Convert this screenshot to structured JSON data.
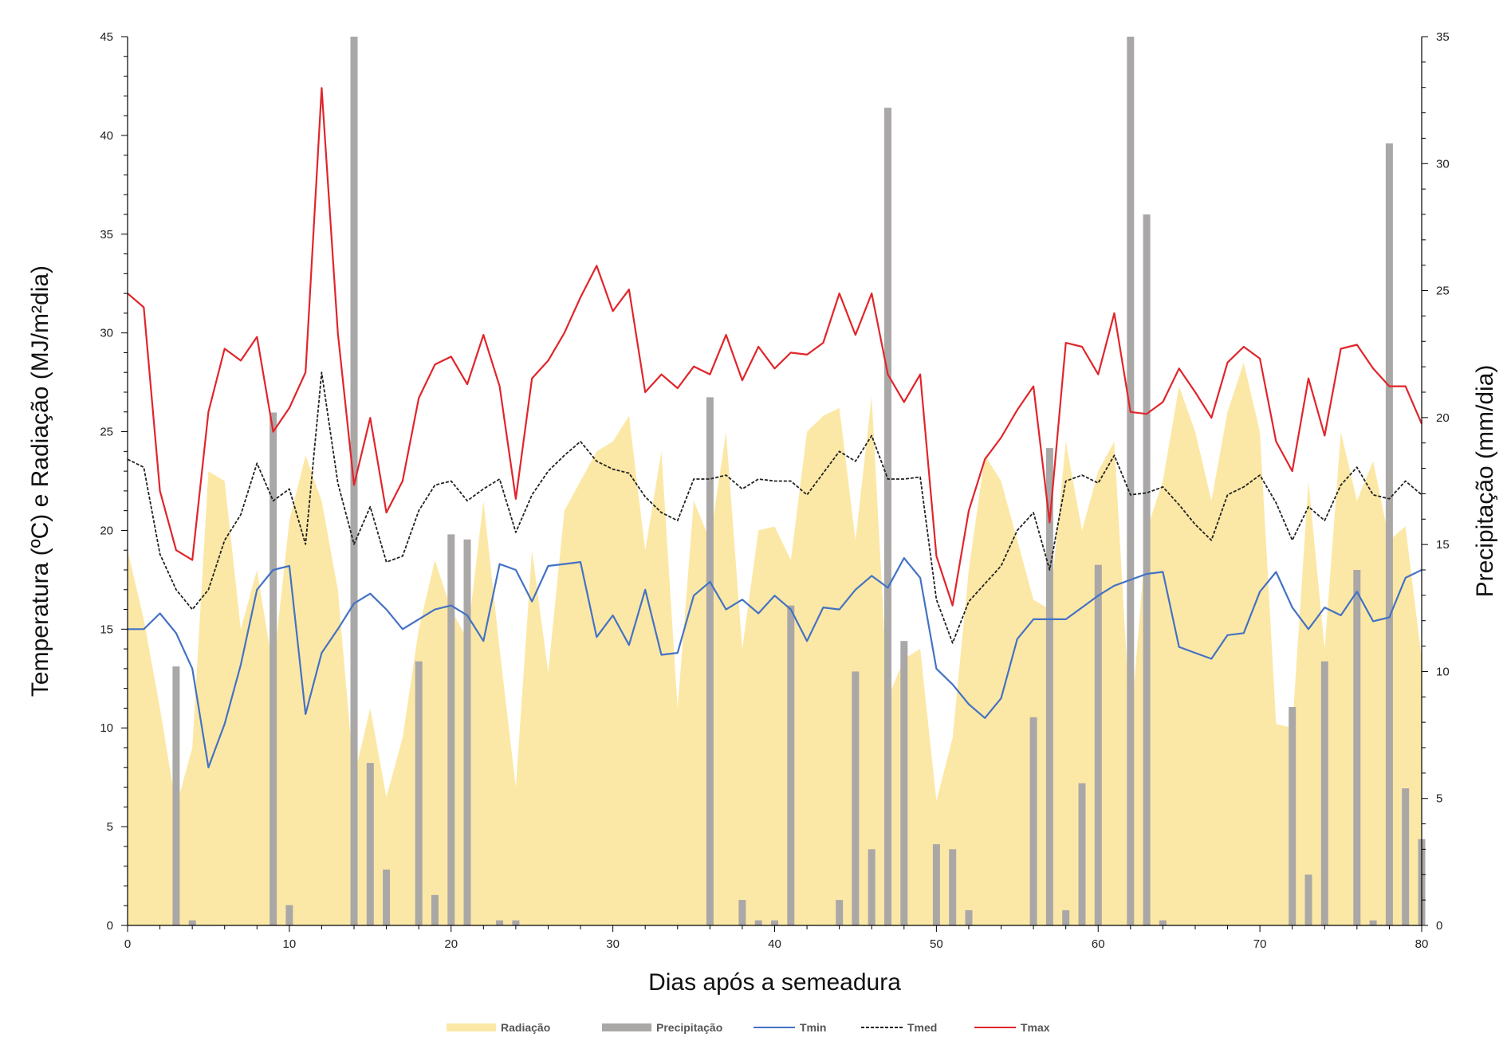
{
  "chart_data": {
    "type": "line",
    "x_axis": {
      "label": "Dias após a semeadura",
      "range": [
        0,
        80
      ],
      "ticks": [
        0,
        10,
        20,
        30,
        40,
        50,
        60,
        70,
        80
      ]
    },
    "y_left": {
      "label": "Temperatura (ºC) e Radiação (MJ/m²dia)",
      "range": [
        0,
        45
      ],
      "ticks": [
        0,
        5,
        10,
        15,
        20,
        25,
        30,
        35,
        40,
        45
      ]
    },
    "y_right": {
      "label": "Precipitação (mm/dia)",
      "range": [
        0,
        35
      ],
      "ticks": [
        0,
        5,
        10,
        15,
        20,
        25,
        30,
        35
      ]
    },
    "grid": false,
    "legend_position": "bottom",
    "days": [
      0,
      1,
      2,
      3,
      4,
      5,
      6,
      7,
      8,
      9,
      10,
      11,
      12,
      13,
      14,
      15,
      16,
      17,
      18,
      19,
      20,
      21,
      22,
      23,
      24,
      25,
      26,
      27,
      28,
      29,
      30,
      31,
      32,
      33,
      34,
      35,
      36,
      37,
      38,
      39,
      40,
      41,
      42,
      43,
      44,
      45,
      46,
      47,
      48,
      49,
      50,
      51,
      52,
      53,
      54,
      55,
      56,
      57,
      58,
      59,
      60,
      61,
      62,
      63,
      64,
      65,
      66,
      67,
      68,
      69,
      70,
      71,
      72,
      73,
      74,
      75,
      76,
      77,
      78,
      79,
      80
    ],
    "series": [
      {
        "name": "Radiação",
        "type": "area",
        "axis": "left",
        "color": "#fce8a6",
        "values": [
          19,
          15.5,
          11,
          6,
          9,
          23,
          22.5,
          15,
          18,
          13,
          20.5,
          23.8,
          21.5,
          17,
          7.5,
          11,
          6.5,
          9.5,
          15,
          18.5,
          16,
          14.5,
          21.5,
          14,
          7,
          19,
          12.8,
          21,
          22.5,
          24,
          24.5,
          25.8,
          19,
          24,
          11,
          21.5,
          19.5,
          25,
          14,
          20,
          20.2,
          18.5,
          25,
          25.8,
          26.2,
          19.5,
          26.8,
          11.5,
          13.5,
          14,
          6.3,
          9.5,
          18,
          23.8,
          22.5,
          19.5,
          16.5,
          16,
          24.5,
          20,
          23,
          24.5,
          10,
          20,
          22.5,
          27.3,
          25,
          21.5,
          26,
          28.5,
          25,
          10.2,
          10,
          22.5,
          14,
          25,
          21.5,
          23.5,
          19.5,
          20.2,
          13.5
        ]
      },
      {
        "name": "Precipitação",
        "type": "bar",
        "axis": "right",
        "color": "#aaa7a7",
        "values": [
          0,
          0,
          0,
          10.2,
          0.2,
          0,
          0,
          0,
          0,
          20.2,
          0.8,
          0,
          0,
          0,
          35,
          6.4,
          2.2,
          0,
          10.4,
          1.2,
          15.4,
          15.2,
          0,
          0.2,
          0.2,
          0,
          0,
          0,
          0,
          0,
          0,
          0,
          0,
          0,
          0,
          0,
          20.8,
          0,
          1,
          0.2,
          0.2,
          12.6,
          0,
          0,
          1,
          10,
          3,
          32.2,
          11.2,
          0,
          3.2,
          3,
          0.6,
          0,
          0,
          0,
          8.2,
          18.8,
          0.6,
          5.6,
          14.2,
          0,
          35,
          28,
          0.2,
          0,
          0,
          0,
          0,
          0,
          0,
          0,
          8.6,
          2,
          10.4,
          0,
          14,
          0.2,
          30.8,
          5.4,
          3.4
        ]
      },
      {
        "name": "Tmin",
        "type": "line",
        "axis": "left",
        "color": "#4472c4",
        "values": [
          15,
          15,
          15.8,
          14.8,
          13,
          8,
          10.2,
          13.2,
          17,
          18,
          18.2,
          10.7,
          13.8,
          15,
          16.3,
          16.8,
          16,
          15,
          15.5,
          16,
          16.2,
          15.7,
          14.4,
          18.3,
          18,
          16.4,
          18.2,
          18.3,
          18.4,
          14.6,
          15.7,
          14.2,
          17,
          13.7,
          13.8,
          16.7,
          17.4,
          16,
          16.5,
          15.8,
          16.7,
          16,
          14.4,
          16.1,
          16,
          17,
          17.7,
          17.1,
          18.6,
          17.6,
          13,
          12.2,
          11.2,
          10.5,
          11.5,
          14.5,
          15.5,
          15.5,
          15.5,
          16.1,
          16.7,
          17.2,
          17.5,
          17.8,
          17.9,
          14.1,
          13.8,
          13.5,
          14.7,
          14.8,
          16.9,
          17.9,
          16.1,
          15,
          16.1,
          15.7,
          16.9,
          15.4,
          15.6,
          17.6,
          18
        ]
      },
      {
        "name": "Tmed",
        "type": "line",
        "axis": "left",
        "color": "#222222",
        "dashed": true,
        "values": [
          23.6,
          23.2,
          18.8,
          17,
          16,
          17,
          19.5,
          20.8,
          23.4,
          21.5,
          22.1,
          19.3,
          28,
          22.4,
          19.3,
          21.2,
          18.4,
          18.7,
          21,
          22.3,
          22.5,
          21.5,
          22.1,
          22.6,
          19.9,
          21.8,
          23,
          23.8,
          24.5,
          23.5,
          23.1,
          22.9,
          21.7,
          20.9,
          20.5,
          22.6,
          22.6,
          22.8,
          22.1,
          22.6,
          22.5,
          22.5,
          21.8,
          22.9,
          24,
          23.5,
          24.8,
          22.6,
          22.6,
          22.7,
          16.5,
          14.3,
          16.4,
          17.3,
          18.2,
          20,
          20.9,
          18,
          22.5,
          22.8,
          22.4,
          23.8,
          21.8,
          21.9,
          22.2,
          21.3,
          20.3,
          19.5,
          21.8,
          22.2,
          22.8,
          21.4,
          19.5,
          21.2,
          20.5,
          22.3,
          23.2,
          21.8,
          21.6,
          22.5,
          21.8
        ]
      },
      {
        "name": "Tmax",
        "type": "line",
        "axis": "left",
        "color": "#e0252b",
        "values": [
          32,
          31.3,
          22,
          19,
          18.5,
          26,
          29.2,
          28.6,
          29.8,
          25,
          26.2,
          28,
          42.4,
          30,
          22.3,
          25.7,
          20.9,
          22.5,
          26.7,
          28.4,
          28.8,
          27.4,
          29.9,
          27.3,
          21.6,
          27.7,
          28.6,
          30,
          31.8,
          33.4,
          31.1,
          32.2,
          27,
          27.9,
          27.2,
          28.3,
          27.9,
          29.9,
          27.6,
          29.3,
          28.2,
          29,
          28.9,
          29.5,
          32,
          29.9,
          32,
          27.9,
          26.5,
          27.9,
          18.7,
          16.2,
          21,
          23.6,
          24.7,
          26.1,
          27.3,
          20.4,
          29.5,
          29.3,
          27.9,
          31,
          26,
          25.9,
          26.5,
          28.2,
          27,
          25.7,
          28.5,
          29.3,
          28.7,
          24.5,
          23,
          27.7,
          24.8,
          29.2,
          29.4,
          28.2,
          27.3,
          27.3,
          25.4
        ]
      }
    ]
  }
}
